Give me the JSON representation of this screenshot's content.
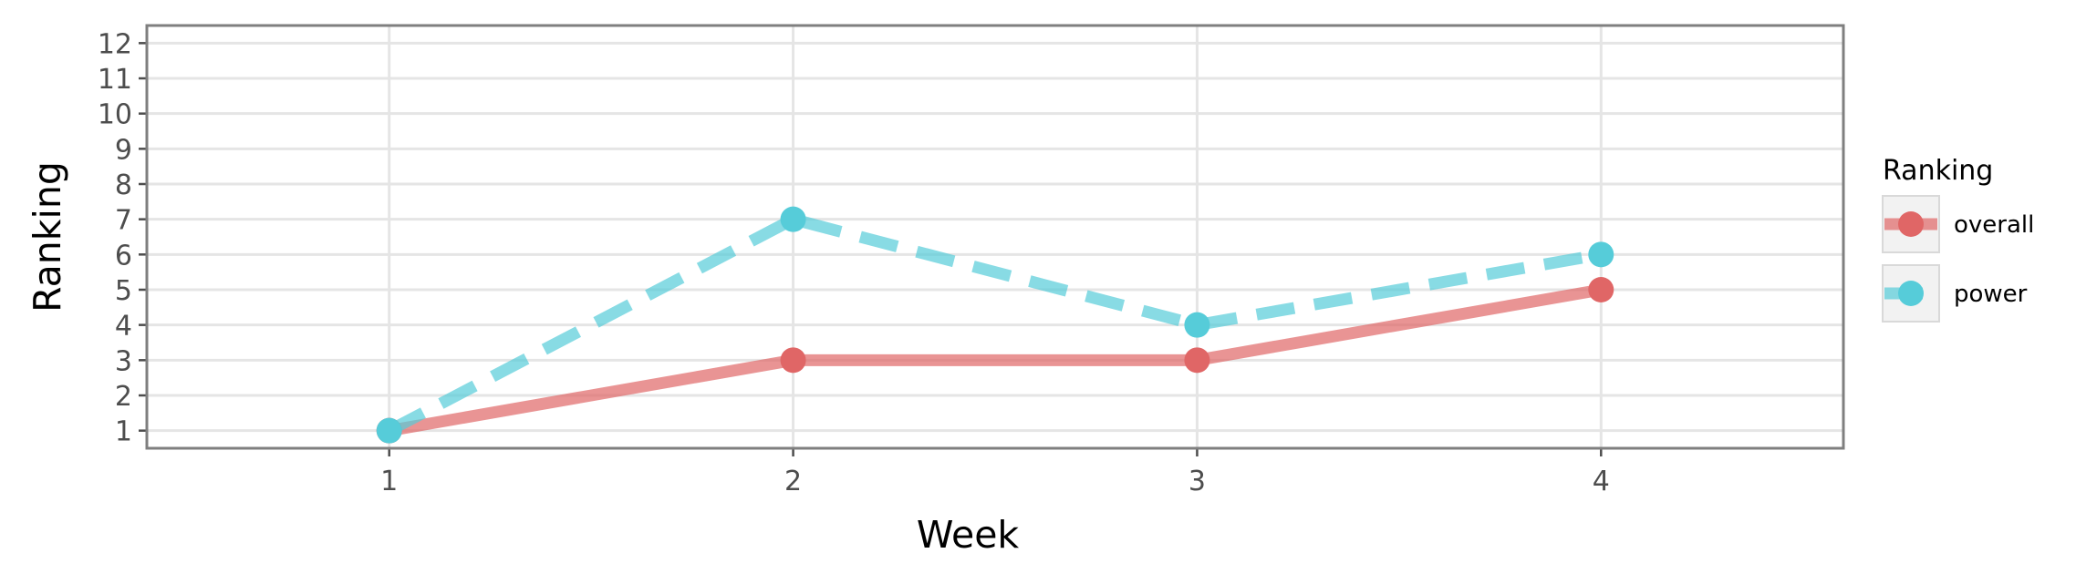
{
  "chart_data": {
    "type": "line",
    "title": "",
    "xlabel": "Week",
    "ylabel": "Ranking",
    "x": [
      1,
      2,
      3,
      4
    ],
    "xlim": [
      0.4,
      4.6
    ],
    "ylim": [
      12.5,
      0.5
    ],
    "y_inverted": true,
    "y_ticks": [
      1,
      2,
      3,
      4,
      5,
      6,
      7,
      8,
      9,
      10,
      11,
      12
    ],
    "x_ticks": [
      1,
      2,
      3,
      4
    ],
    "grid": true,
    "legend": {
      "title": "Ranking",
      "position": "right"
    },
    "series": [
      {
        "name": "overall",
        "values": [
          1,
          3,
          3,
          5
        ],
        "color": "#e06666",
        "line_style": "solid"
      },
      {
        "name": "power",
        "values": [
          1,
          7,
          4,
          6
        ],
        "color": "#56ccd9",
        "line_style": "dashed"
      }
    ]
  }
}
